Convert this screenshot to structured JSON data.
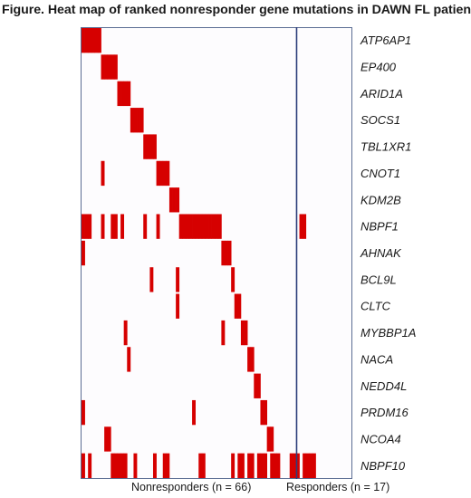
{
  "title": "Figure. Heat map of ranked nonresponder gene mutations in DAWN FL patients",
  "colors": {
    "mutated": "#d60000",
    "background": "#fdfcfe",
    "frame": "#5b6d93",
    "divider": "#2d3d7a"
  },
  "groups": {
    "nonresponders": {
      "label": "Nonresponders (n = 66)",
      "n": 66
    },
    "responders": {
      "label": "Responders (n = 17)",
      "n": 17
    }
  },
  "chart_data": {
    "type": "heatmap",
    "title": "Figure. Heat map of ranked nonresponder gene mutations in DAWN FL patients",
    "n_patients": 83,
    "genes": [
      "ATP6AP1",
      "EP400",
      "ARID1A",
      "SOCS1",
      "TBL1XR1",
      "CNOT1",
      "KDM2B",
      "NBPF1",
      "AHNAK",
      "BCL9L",
      "CLTC",
      "MYBBP1A",
      "NACA",
      "NEDD4L",
      "PRDM16",
      "NCOA4",
      "NBPF10"
    ],
    "mutated_patients": {
      "ATP6AP1": [
        1,
        2,
        3,
        4,
        5,
        6
      ],
      "EP400": [
        7,
        8,
        9,
        10,
        11
      ],
      "ARID1A": [
        12,
        13,
        14,
        15
      ],
      "SOCS1": [
        16,
        17,
        18,
        19
      ],
      "TBL1XR1": [
        20,
        21,
        22,
        23
      ],
      "CNOT1": [
        7,
        24,
        25,
        26,
        27
      ],
      "KDM2B": [
        28,
        29,
        30
      ],
      "NBPF1": [
        1,
        2,
        3,
        7,
        10,
        11,
        13,
        20,
        24,
        31,
        32,
        33,
        34,
        35,
        36,
        37,
        38,
        39,
        40,
        41,
        42,
        43,
        68,
        69
      ],
      "AHNAK": [
        1,
        44,
        45,
        46
      ],
      "BCL9L": [
        22,
        30,
        47
      ],
      "CLTC": [
        30,
        48,
        49
      ],
      "MYBBP1A": [
        14,
        44,
        50,
        51
      ],
      "NACA": [
        15,
        52,
        53
      ],
      "NEDD4L": [
        54,
        55
      ],
      "PRDM16": [
        1,
        35,
        56,
        57
      ],
      "NCOA4": [
        8,
        9,
        58,
        59
      ],
      "NBPF10": [
        1,
        3,
        10,
        11,
        12,
        13,
        14,
        17,
        23,
        26,
        27,
        37,
        38,
        47,
        49,
        50,
        52,
        53,
        55,
        56,
        57,
        59,
        60,
        61,
        65,
        66,
        67,
        69,
        70,
        71,
        72
      ]
    }
  }
}
